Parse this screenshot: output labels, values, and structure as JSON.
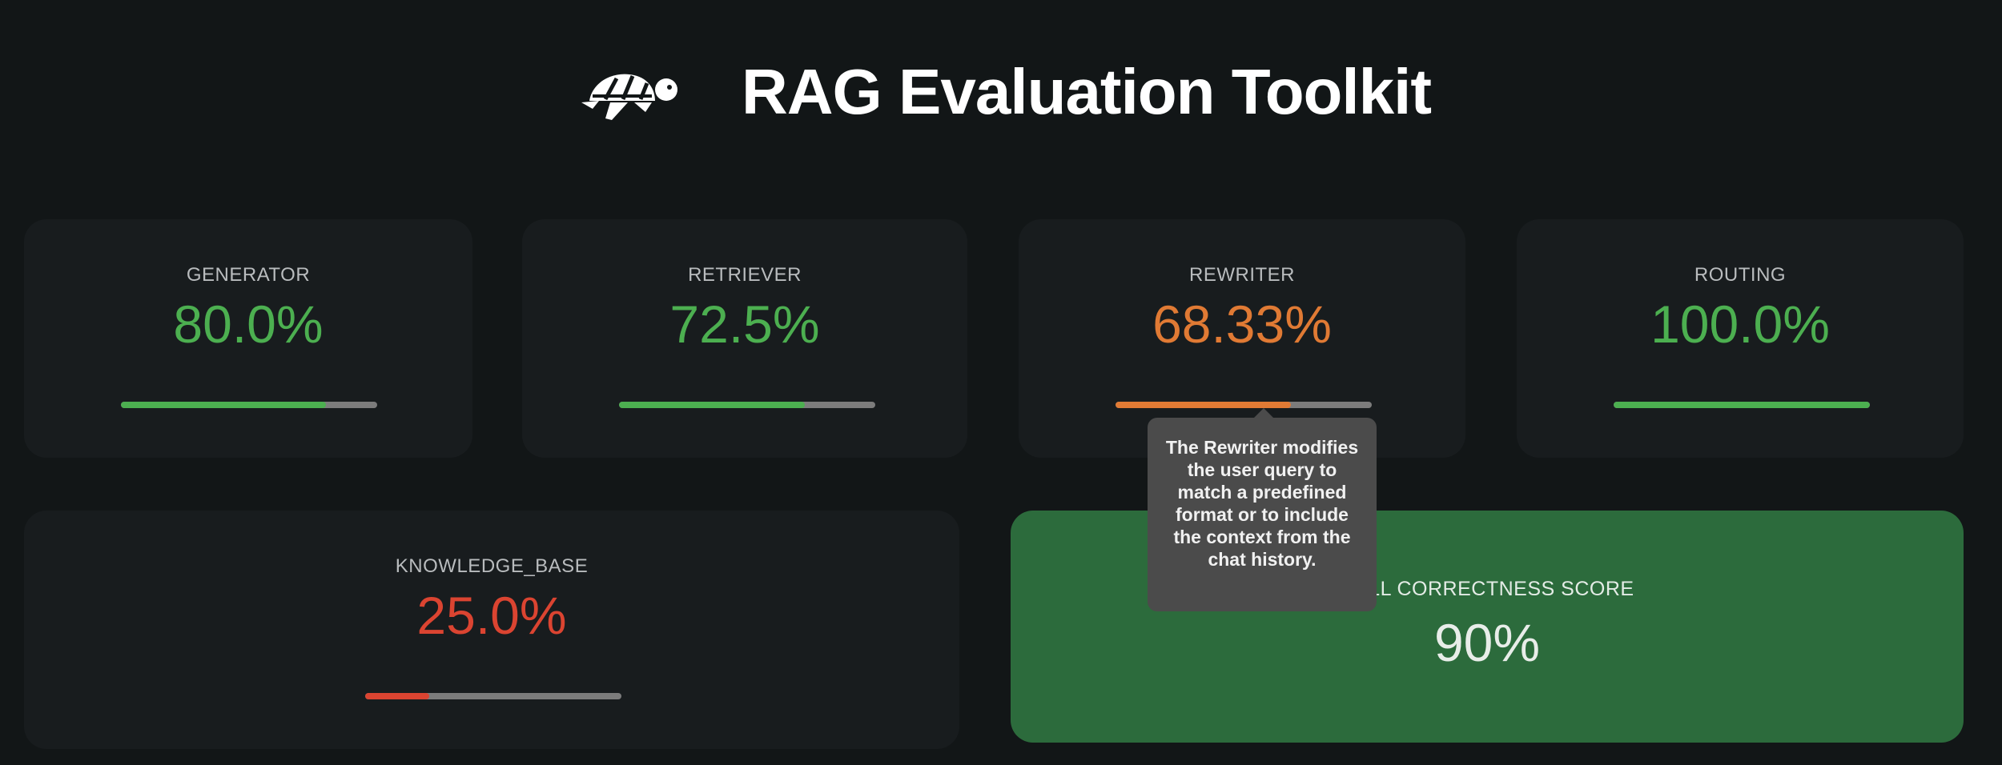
{
  "header": {
    "title": "RAG Evaluation Toolkit",
    "logo_icon": "turtle-icon"
  },
  "metrics": [
    {
      "label": "GENERATOR",
      "value": "80.0%",
      "progress_percent": 80.0,
      "color": "#4caf50"
    },
    {
      "label": "RETRIEVER",
      "value": "72.5%",
      "progress_percent": 72.5,
      "color": "#4caf50"
    },
    {
      "label": "REWRITER",
      "value": "68.33%",
      "progress_percent": 68.33,
      "color": "#e07a34"
    },
    {
      "label": "ROUTING",
      "value": "100.0%",
      "progress_percent": 100.0,
      "color": "#4caf50"
    },
    {
      "label": "KNOWLEDGE_BASE",
      "value": "25.0%",
      "progress_percent": 25.0,
      "color": "#db4431"
    }
  ],
  "overall": {
    "label": "RALL CORRECTNESS SCORE",
    "value": "90%",
    "color": "#2c6b3c"
  },
  "tooltip": {
    "text": "The Rewriter modifies the user query to match a predefined format or to include the context from the chat history."
  }
}
